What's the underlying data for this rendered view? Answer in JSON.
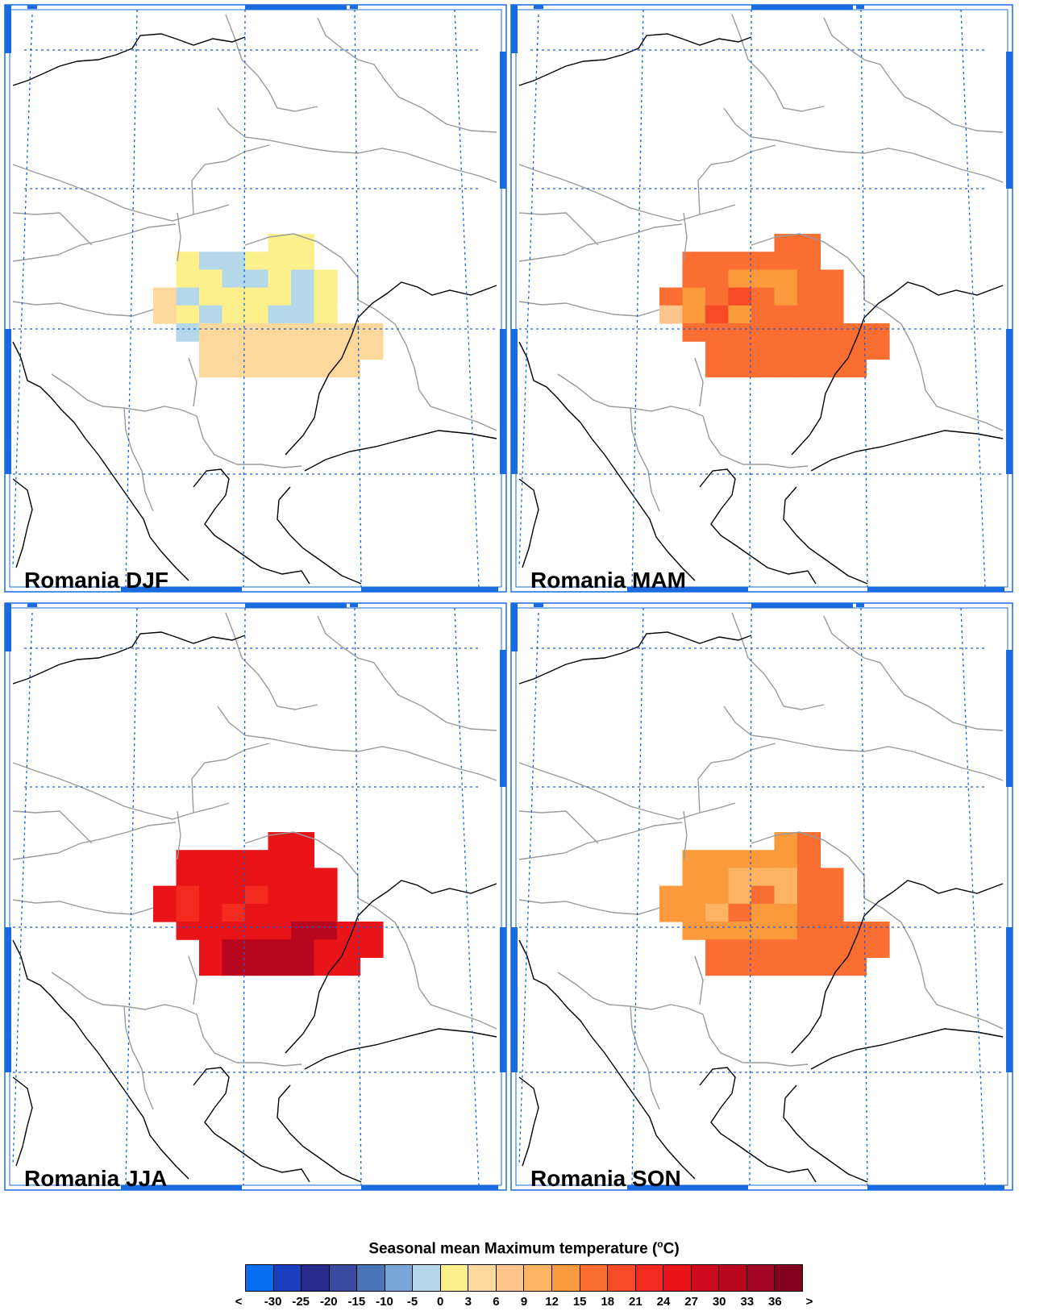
{
  "panels": [
    {
      "label": "Romania DJF",
      "season": "DJF"
    },
    {
      "label": "Romania MAM",
      "season": "MAM"
    },
    {
      "label": "Romania JJA",
      "season": "JJA"
    },
    {
      "label": "Romania SON",
      "season": "SON"
    }
  ],
  "colorbar": {
    "title": "Seasonal mean Maximum temperature (",
    "title_sup": "o",
    "title_end": "C)",
    "colors": [
      "#0a6ef5",
      "#1a3fbf",
      "#262a8a",
      "#3a4aa0",
      "#4a74b8",
      "#7aa6d6",
      "#b4d7ea",
      "#fbf08c",
      "#fcd99a",
      "#fdc48c",
      "#fdb462",
      "#fb9a3c",
      "#fa6e32",
      "#f94a28",
      "#f42a1e",
      "#e81418",
      "#d00a1e",
      "#b8061e",
      "#a00422",
      "#82001e"
    ],
    "ticks": [
      "<",
      "-30",
      "-25",
      "-20",
      "-15",
      "-10",
      "-5",
      "0",
      "3",
      "6",
      "9",
      "12",
      "15",
      "18",
      "21",
      "24",
      "27",
      "30",
      "33",
      "36",
      ">"
    ]
  },
  "map_colors": {
    "coast": "#000000",
    "border": "#9a9a9a",
    "grid": "#1a5fd6",
    "frame": "#1a6be0"
  }
}
